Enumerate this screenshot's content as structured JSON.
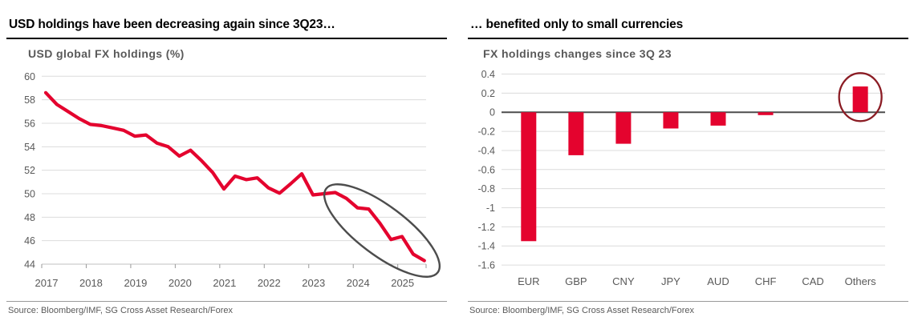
{
  "left_panel": {
    "header": "USD holdings have been decreasing again since 3Q23…",
    "source": "Source: Bloomberg/IMF, SG Cross Asset Research/Forex"
  },
  "right_panel": {
    "header": "… benefited only to small currencies",
    "source": "Source: Bloomberg/IMF, SG Cross Asset Research/Forex"
  },
  "chart_data": [
    {
      "type": "line",
      "title": "USD global FX holdings (%)",
      "x_frequency": "quarterly",
      "x_range": [
        "2017Q1",
        "2025Q3"
      ],
      "x_tick_labels": [
        "2017",
        "2018",
        "2019",
        "2020",
        "2021",
        "2022",
        "2023",
        "2024",
        "2025"
      ],
      "y_ticks": [
        60,
        58,
        56,
        54,
        52,
        50,
        48,
        46,
        44
      ],
      "ylim": [
        44,
        60
      ],
      "values": [
        58.6,
        57.6,
        57.0,
        56.4,
        55.9,
        55.8,
        55.6,
        55.4,
        54.9,
        55.0,
        54.3,
        54.0,
        53.2,
        53.7,
        52.8,
        51.8,
        50.4,
        51.5,
        51.2,
        51.35,
        50.5,
        50.05,
        50.85,
        51.7,
        49.9,
        50.0,
        50.1,
        49.6,
        48.8,
        48.7,
        47.5,
        46.1,
        46.35,
        44.85,
        44.3
      ],
      "line_color": "#e4032e",
      "grid": true,
      "legend": "none",
      "annotation": {
        "shape": "ellipse",
        "meaning": "highlights decline since 3Q23",
        "color": "#4d4d4d"
      }
    },
    {
      "type": "bar",
      "title": "FX holdings changes since 3Q 23",
      "categories": [
        "EUR",
        "GBP",
        "CNY",
        "JPY",
        "AUD",
        "CHF",
        "CAD",
        "Others"
      ],
      "values": [
        -1.35,
        -0.45,
        -0.33,
        -0.17,
        -0.14,
        -0.03,
        0.0,
        0.27
      ],
      "y_tick_labels": [
        "0.4",
        "0.2",
        "0",
        "-0.2",
        "-0.4",
        "-0.6",
        "-0.8",
        "-1",
        "-1.2",
        "-1.4",
        "-1.6"
      ],
      "ylim": [
        -1.6,
        0.4
      ],
      "bar_color": "#e4032e",
      "zero_line_color": "#4d4d4d",
      "grid": true,
      "legend": "none",
      "annotation": {
        "shape": "circle",
        "target": "Others",
        "meaning": "only positive change",
        "color": "#8b1c24"
      }
    }
  ]
}
